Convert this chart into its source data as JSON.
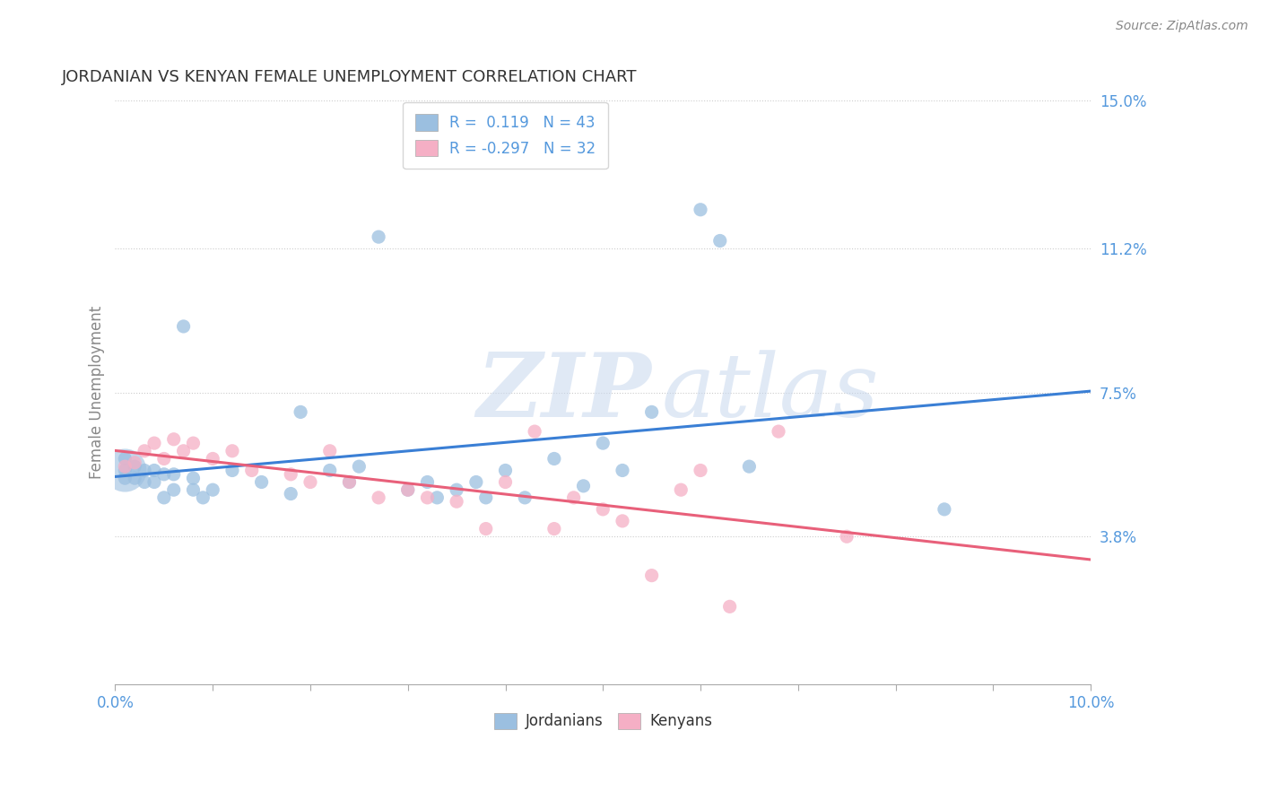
{
  "title": "JORDANIAN VS KENYAN FEMALE UNEMPLOYMENT CORRELATION CHART",
  "source_text": "Source: ZipAtlas.com",
  "ylabel": "Female Unemployment",
  "xlim": [
    0.0,
    0.1
  ],
  "ylim": [
    0.0,
    0.15
  ],
  "x_tick_positions": [
    0.0,
    0.01,
    0.02,
    0.03,
    0.04,
    0.05,
    0.06,
    0.07,
    0.08,
    0.09,
    0.1
  ],
  "x_tick_labels_show": [
    "0.0%",
    "",
    "",
    "",
    "",
    "",
    "",
    "",
    "",
    "",
    "10.0%"
  ],
  "y_tick_values_right": [
    0.15,
    0.112,
    0.075,
    0.038
  ],
  "y_tick_labels_right": [
    "15.0%",
    "11.2%",
    "7.5%",
    "3.8%"
  ],
  "watermark_zip": "ZIP",
  "watermark_atlas": "atlas",
  "jordan_color": "#9bbfe0",
  "kenya_color": "#f5afc5",
  "jordan_line_color": "#3a7fd5",
  "kenya_line_color": "#e8607a",
  "jordan_r": 0.119,
  "jordan_n": 43,
  "kenya_r": -0.297,
  "kenya_n": 32,
  "jordan_x": [
    0.001,
    0.001,
    0.001,
    0.002,
    0.002,
    0.003,
    0.003,
    0.004,
    0.004,
    0.005,
    0.005,
    0.006,
    0.006,
    0.007,
    0.008,
    0.008,
    0.009,
    0.01,
    0.012,
    0.015,
    0.018,
    0.019,
    0.022,
    0.024,
    0.025,
    0.027,
    0.03,
    0.032,
    0.033,
    0.035,
    0.037,
    0.038,
    0.04,
    0.042,
    0.045,
    0.048,
    0.05,
    0.052,
    0.055,
    0.06,
    0.062,
    0.065,
    0.085
  ],
  "jordan_y": [
    0.053,
    0.055,
    0.058,
    0.053,
    0.056,
    0.052,
    0.055,
    0.052,
    0.055,
    0.048,
    0.054,
    0.05,
    0.054,
    0.092,
    0.05,
    0.053,
    0.048,
    0.05,
    0.055,
    0.052,
    0.049,
    0.07,
    0.055,
    0.052,
    0.056,
    0.115,
    0.05,
    0.052,
    0.048,
    0.05,
    0.052,
    0.048,
    0.055,
    0.048,
    0.058,
    0.051,
    0.062,
    0.055,
    0.07,
    0.122,
    0.114,
    0.056,
    0.045
  ],
  "kenya_x": [
    0.001,
    0.002,
    0.003,
    0.004,
    0.005,
    0.006,
    0.007,
    0.008,
    0.01,
    0.012,
    0.014,
    0.018,
    0.02,
    0.022,
    0.024,
    0.027,
    0.03,
    0.032,
    0.035,
    0.038,
    0.04,
    0.043,
    0.045,
    0.047,
    0.05,
    0.052,
    0.055,
    0.058,
    0.06,
    0.063,
    0.068,
    0.075
  ],
  "kenya_y": [
    0.056,
    0.057,
    0.06,
    0.062,
    0.058,
    0.063,
    0.06,
    0.062,
    0.058,
    0.06,
    0.055,
    0.054,
    0.052,
    0.06,
    0.052,
    0.048,
    0.05,
    0.048,
    0.047,
    0.04,
    0.052,
    0.065,
    0.04,
    0.048,
    0.045,
    0.042,
    0.028,
    0.05,
    0.055,
    0.02,
    0.065,
    0.038
  ],
  "background_color": "#ffffff",
  "grid_color": "#cccccc",
  "title_color": "#333333",
  "axis_label_color": "#888888",
  "right_label_color": "#5599dd",
  "tick_color": "#aaaaaa"
}
